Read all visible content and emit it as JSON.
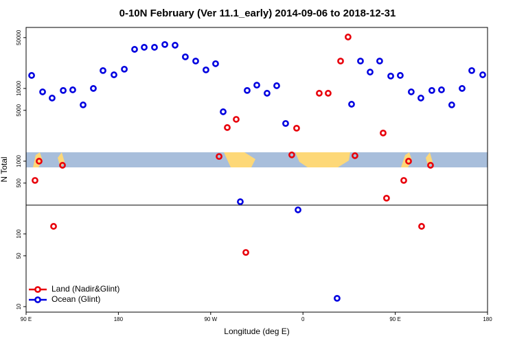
{
  "chart_data": {
    "type": "scatter",
    "title": "0-10N February (Ver 11.1_early)   2014-09-06 to 2018-12-31",
    "x_label": "Longitude (deg E)",
    "y_label": "N Total",
    "xlim": [
      90,
      540
    ],
    "xticks": [
      {
        "value": 90,
        "label": "90 E"
      },
      180,
      {
        "value": 270,
        "label": "90 W"
      },
      {
        "value": 360,
        "label": "0"
      },
      {
        "value": 450,
        "label": "90 E"
      },
      {
        "value": 540,
        "label": "180"
      }
    ],
    "ylim": [
      8.4,
      69000
    ],
    "ylog": true,
    "yticks": [
      10,
      50,
      100,
      500,
      1000,
      5000,
      10000,
      50000
    ],
    "legend": "bottom-left",
    "series": [
      {
        "name": "Land (Nadir&Glint)",
        "color": "#e8000b",
        "x": [
          98.7,
          102.7,
          116.8,
          125.5,
          278.2,
          286.2,
          294.9,
          304.3,
          349.1,
          353.8,
          375.9,
          384.6,
          396.7,
          404.0,
          410.7,
          438.2,
          441.5,
          458.3,
          463.0,
          475.7,
          484.4
        ],
        "values": [
          544,
          1000,
          127,
          878,
          1160,
          2900,
          3760,
          55.6,
          1220,
          2840,
          8590,
          8590,
          23800,
          51000,
          1190,
          2440,
          310,
          544,
          1000,
          127,
          878
        ]
      },
      {
        "name": "Ocean (Glint)",
        "color": "#0000e0",
        "x": [
          95.4,
          106.1,
          115.4,
          126.2,
          135.5,
          145.6,
          155.6,
          165.0,
          175.7,
          185.8,
          195.8,
          205.2,
          215.2,
          225.3,
          235.3,
          245.3,
          255.4,
          265.4,
          274.8,
          282.2,
          298.9,
          305.6,
          315.0,
          325.0,
          334.4,
          343.1,
          355.2,
          393.3,
          407.4,
          416.1,
          425.5,
          434.8,
          445.6,
          454.9,
          465.6,
          475.0,
          485.7,
          495.1,
          505.1,
          515.2,
          524.6,
          535.3
        ],
        "values": [
          15100,
          8970,
          7380,
          9380,
          9570,
          5940,
          10000,
          17600,
          15400,
          18400,
          34500,
          36800,
          36800,
          40200,
          39300,
          27200,
          23800,
          18000,
          21900,
          4780,
          277,
          9380,
          11100,
          8590,
          10900,
          3300,
          214,
          13,
          6070,
          23800,
          16800,
          23800,
          14800,
          15100,
          8970,
          7380,
          9380,
          9570,
          5940,
          10000,
          17600,
          15400
        ]
      }
    ]
  }
}
